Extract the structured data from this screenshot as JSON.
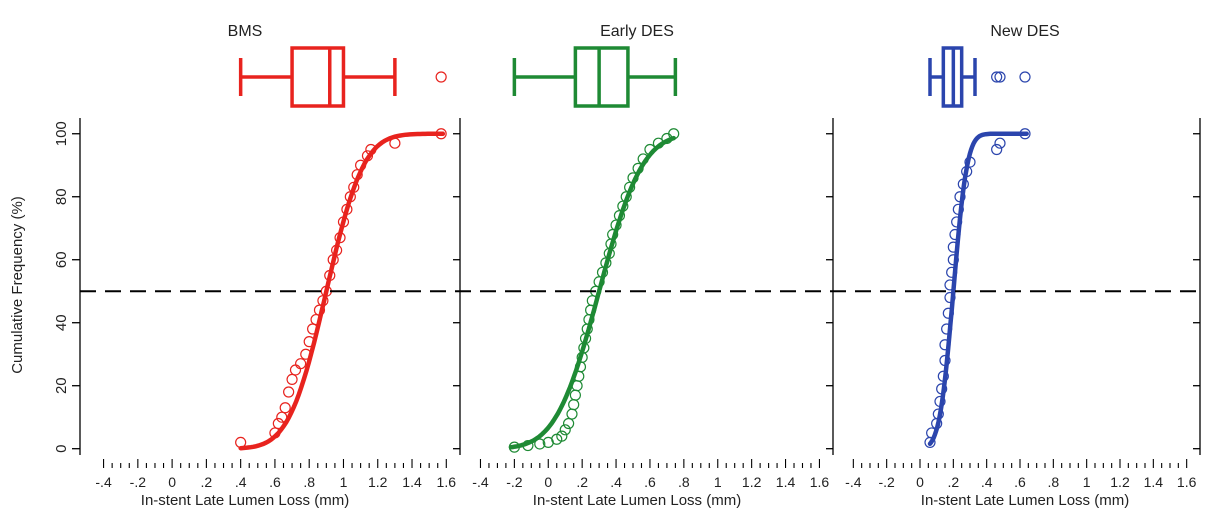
{
  "chart_data": {
    "type": "scatter",
    "ylabel": "Cumulative Frequency (%)",
    "xlabel": "In-stent Late Lumen Loss (mm)",
    "xlim": [
      -0.45,
      1.68
    ],
    "ylim": [
      -2,
      105
    ],
    "x_ticks": [
      -0.4,
      -0.2,
      0,
      0.2,
      0.4,
      0.6,
      0.8,
      1.0,
      1.2,
      1.4,
      1.6
    ],
    "x_tick_labels": [
      "-.4",
      "-.2",
      "0",
      ".2",
      ".4",
      ".6",
      ".8",
      "1",
      "1.2",
      "1.4",
      "1.6"
    ],
    "y_ticks": [
      0,
      20,
      40,
      60,
      80,
      100
    ],
    "y_tick_labels": [
      "0",
      "20",
      "40",
      "60",
      "80",
      "100"
    ],
    "reference_line_y": 50,
    "panels": [
      {
        "title": "BMS",
        "color": "#e8231e",
        "curve": {
          "mean": 0.9,
          "sd": 0.17,
          "x_range": [
            0.4,
            1.58
          ]
        },
        "boxplot": {
          "whisker_low": 0.4,
          "q1": 0.7,
          "median": 0.92,
          "q3": 1.0,
          "whisker_high": 1.3,
          "outliers": [
            1.57
          ]
        },
        "points": [
          [
            0.4,
            2
          ],
          [
            0.6,
            5
          ],
          [
            0.62,
            8
          ],
          [
            0.64,
            10
          ],
          [
            0.66,
            13
          ],
          [
            0.68,
            18
          ],
          [
            0.7,
            22
          ],
          [
            0.72,
            25
          ],
          [
            0.75,
            27
          ],
          [
            0.78,
            30
          ],
          [
            0.8,
            34
          ],
          [
            0.82,
            38
          ],
          [
            0.84,
            41
          ],
          [
            0.86,
            44
          ],
          [
            0.88,
            47
          ],
          [
            0.9,
            50
          ],
          [
            0.92,
            55
          ],
          [
            0.94,
            60
          ],
          [
            0.96,
            63
          ],
          [
            0.98,
            67
          ],
          [
            1.0,
            72
          ],
          [
            1.02,
            76
          ],
          [
            1.04,
            80
          ],
          [
            1.06,
            83
          ],
          [
            1.08,
            87
          ],
          [
            1.1,
            90
          ],
          [
            1.14,
            93
          ],
          [
            1.16,
            95
          ],
          [
            1.3,
            97
          ],
          [
            1.57,
            100
          ]
        ]
      },
      {
        "title": "Early DES",
        "color": "#1e8a34",
        "curve": {
          "mean": 0.3,
          "sd": 0.2,
          "x_range": [
            -0.22,
            0.74
          ]
        },
        "boxplot": {
          "whisker_low": -0.2,
          "q1": 0.16,
          "median": 0.3,
          "q3": 0.47,
          "whisker_high": 0.75,
          "outliers": []
        },
        "points": [
          [
            -0.2,
            0.5
          ],
          [
            -0.12,
            1
          ],
          [
            -0.05,
            1.5
          ],
          [
            0.0,
            2
          ],
          [
            0.05,
            3
          ],
          [
            0.08,
            4
          ],
          [
            0.1,
            6
          ],
          [
            0.12,
            8
          ],
          [
            0.14,
            11
          ],
          [
            0.15,
            14
          ],
          [
            0.16,
            17
          ],
          [
            0.17,
            20
          ],
          [
            0.18,
            23
          ],
          [
            0.19,
            26
          ],
          [
            0.2,
            29
          ],
          [
            0.21,
            32
          ],
          [
            0.22,
            35
          ],
          [
            0.23,
            38
          ],
          [
            0.24,
            41
          ],
          [
            0.25,
            44
          ],
          [
            0.26,
            47
          ],
          [
            0.28,
            50
          ],
          [
            0.3,
            53
          ],
          [
            0.32,
            56
          ],
          [
            0.34,
            59
          ],
          [
            0.36,
            62
          ],
          [
            0.37,
            65
          ],
          [
            0.38,
            68
          ],
          [
            0.4,
            71
          ],
          [
            0.42,
            74
          ],
          [
            0.44,
            77
          ],
          [
            0.46,
            80
          ],
          [
            0.48,
            83
          ],
          [
            0.5,
            86
          ],
          [
            0.53,
            89
          ],
          [
            0.56,
            92
          ],
          [
            0.6,
            95
          ],
          [
            0.65,
            97
          ],
          [
            0.7,
            98.5
          ],
          [
            0.74,
            100
          ]
        ]
      },
      {
        "title": "New DES",
        "color": "#2b45ad",
        "curve": {
          "mean": 0.2,
          "sd": 0.065,
          "x_range": [
            0.06,
            0.64
          ]
        },
        "boxplot": {
          "whisker_low": 0.06,
          "q1": 0.14,
          "median": 0.2,
          "q3": 0.25,
          "whisker_high": 0.33,
          "outliers": [
            0.46,
            0.48,
            0.63
          ]
        },
        "points": [
          [
            0.06,
            2
          ],
          [
            0.07,
            5
          ],
          [
            0.1,
            8
          ],
          [
            0.11,
            11
          ],
          [
            0.12,
            15
          ],
          [
            0.13,
            19
          ],
          [
            0.14,
            23
          ],
          [
            0.15,
            28
          ],
          [
            0.15,
            33
          ],
          [
            0.16,
            38
          ],
          [
            0.17,
            43
          ],
          [
            0.18,
            48
          ],
          [
            0.18,
            52
          ],
          [
            0.19,
            56
          ],
          [
            0.2,
            60
          ],
          [
            0.2,
            64
          ],
          [
            0.21,
            68
          ],
          [
            0.22,
            72
          ],
          [
            0.23,
            76
          ],
          [
            0.24,
            80
          ],
          [
            0.26,
            84
          ],
          [
            0.28,
            88
          ],
          [
            0.3,
            91
          ],
          [
            0.46,
            95
          ],
          [
            0.48,
            97
          ],
          [
            0.63,
            100
          ]
        ]
      }
    ]
  }
}
